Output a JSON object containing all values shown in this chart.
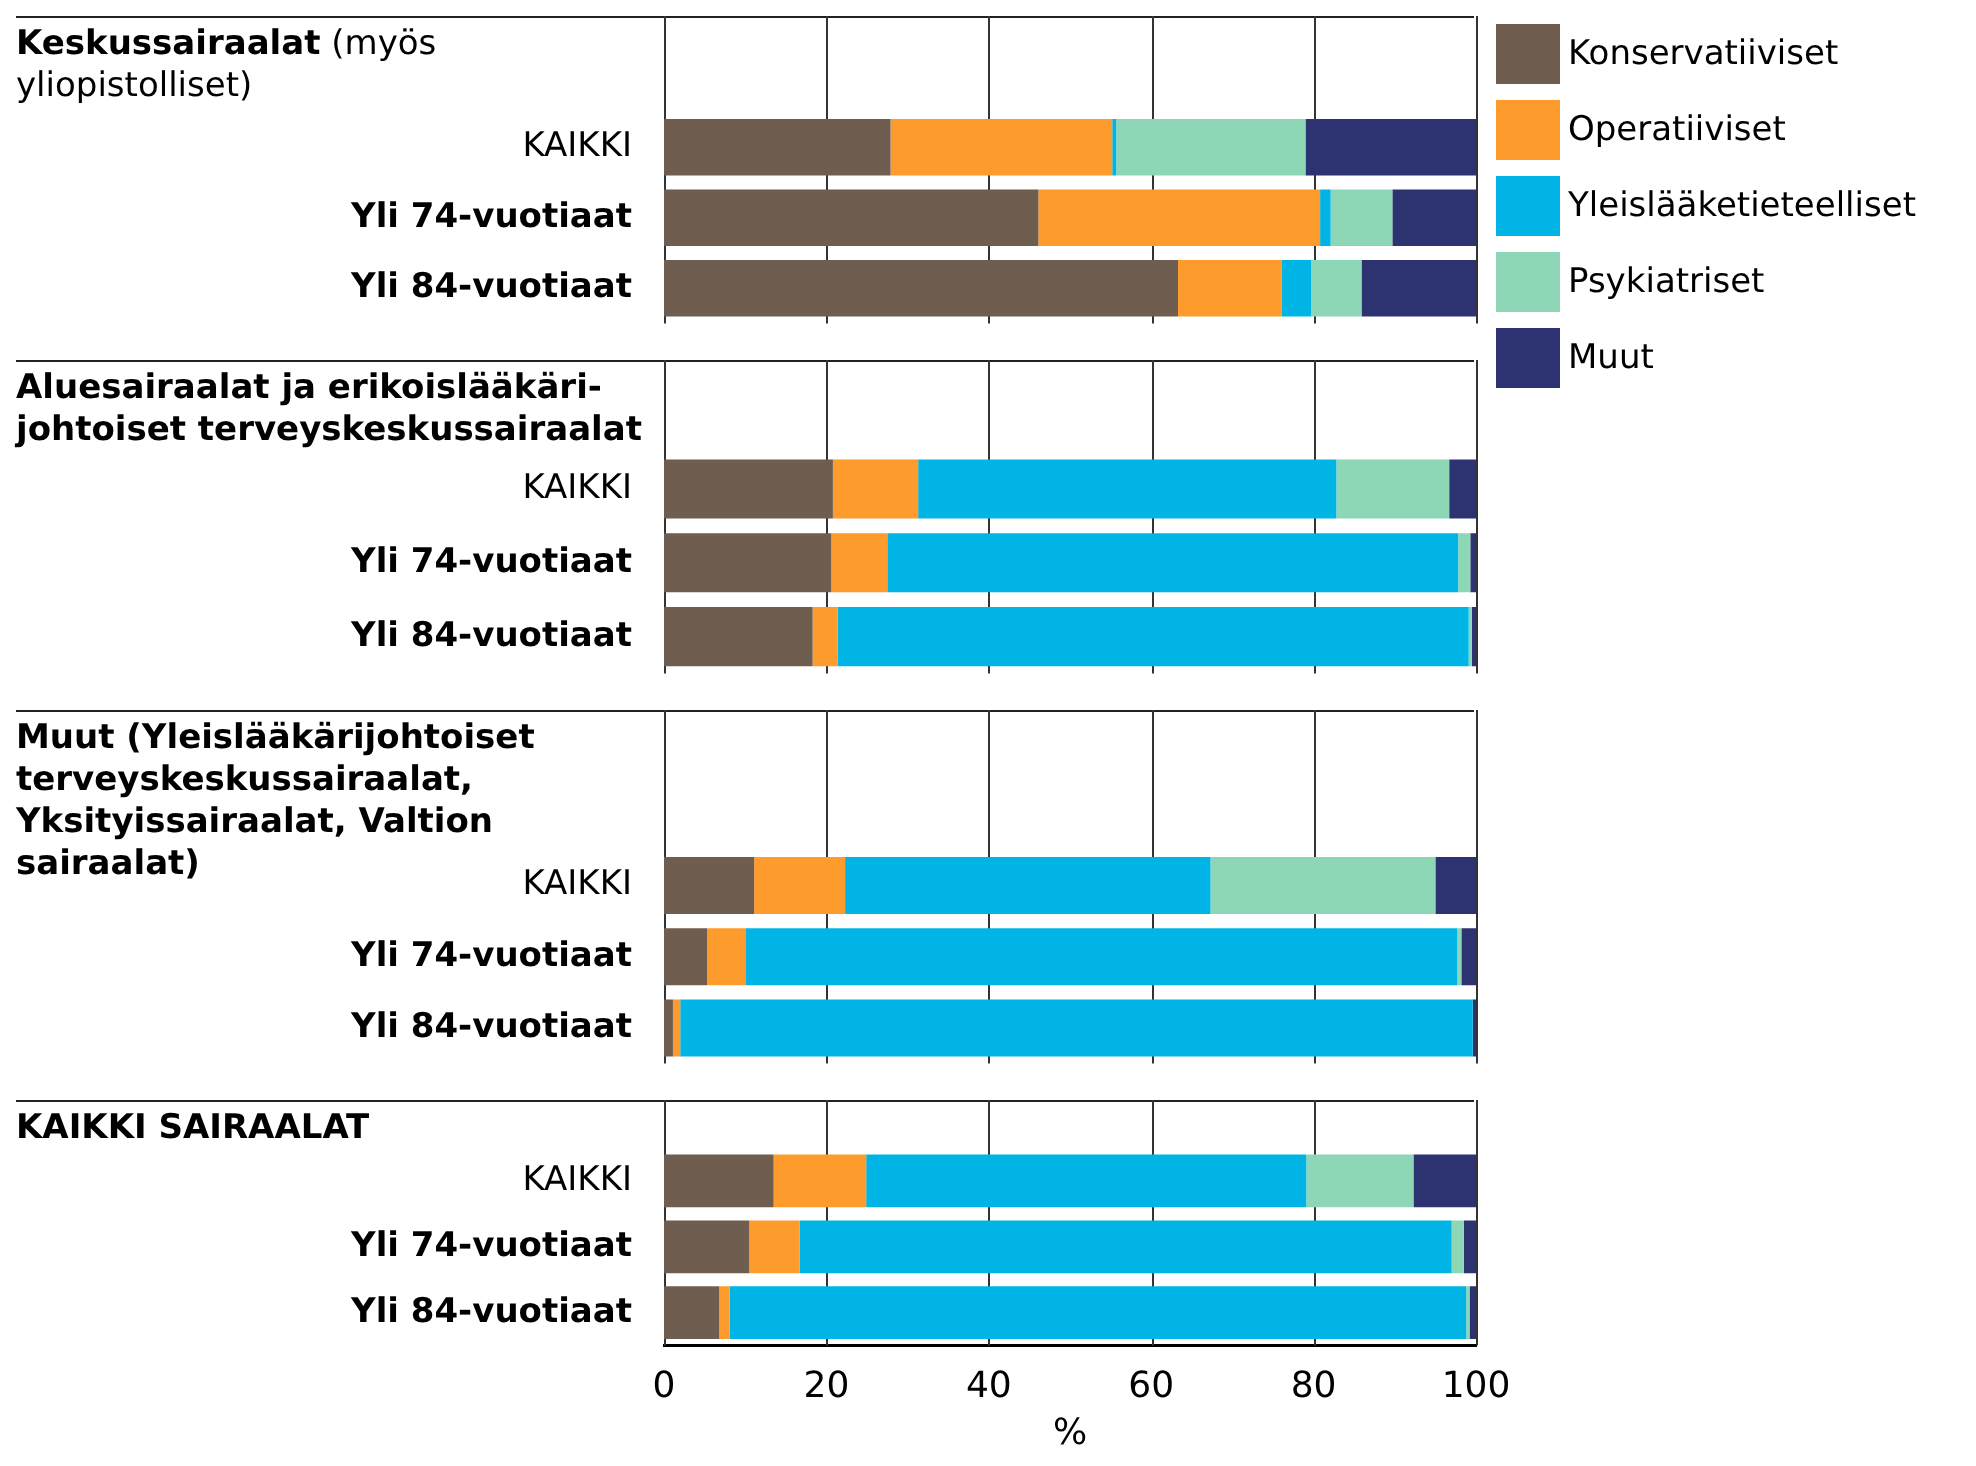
{
  "chart_data": [
    {
      "type": "bar",
      "orientation": "horizontal",
      "stacked": true,
      "title": "Keskussairaalat",
      "subtitle": "(myös yliopistolliset)",
      "categories": [
        "KAIKKI",
        "Yli 74-vuotiaat",
        "Yli 84-vuotiaat"
      ],
      "legend": "right",
      "grid": "x",
      "tick_labels": "y",
      "xlim": [
        0,
        100
      ],
      "xticks": [
        0,
        20,
        40,
        60,
        80,
        100
      ],
      "series": [
        {
          "name": "Konservatiiviset",
          "color": "#6f5d4f",
          "values": [
            27.9,
            46.1,
            63.3
          ]
        },
        {
          "name": "Operatiiviset",
          "color": "#fd9b2d",
          "values": [
            27.3,
            34.7,
            12.8
          ]
        },
        {
          "name": "Yleislääketieteelliset",
          "color": "#00b5e6",
          "values": [
            0.5,
            1.3,
            3.6
          ]
        },
        {
          "name": "Psykiatriset",
          "color": "#8dd7b7",
          "values": [
            23.3,
            7.6,
            6.2
          ]
        },
        {
          "name": "Muut",
          "color": "#2c3370",
          "values": [
            21.0,
            10.3,
            14.1
          ]
        }
      ]
    },
    {
      "type": "bar",
      "orientation": "horizontal",
      "stacked": true,
      "title": "Aluesairaalat ja erikoislääkäri-johtoiset terveyskeskussairaalat",
      "categories": [
        "KAIKKI",
        "Yli 74-vuotiaat",
        "Yli 84-vuotiaat"
      ],
      "grid": "x",
      "tick_labels": "y",
      "xlim": [
        0,
        100
      ],
      "xticks": [
        0,
        20,
        40,
        60,
        80,
        100
      ],
      "series": [
        {
          "color": "#6f5d4f",
          "values": [
            20.8,
            20.6,
            18.3
          ]
        },
        {
          "color": "#fd9b2d",
          "values": [
            10.5,
            6.9,
            3.1
          ]
        },
        {
          "color": "#00b5e6",
          "values": [
            51.5,
            70.3,
            77.7
          ]
        },
        {
          "color": "#8dd7b7",
          "values": [
            13.9,
            1.5,
            0.4
          ]
        },
        {
          "color": "#2c3370",
          "values": [
            3.3,
            0.7,
            0.5
          ]
        }
      ]
    },
    {
      "type": "bar",
      "orientation": "horizontal",
      "stacked": true,
      "title": "Muut (Yleislääkärijohtoiset terveyskeskussairaalat, Yksityissairaalat, Valtion sairaalat)",
      "categories": [
        "KAIKKI",
        "Yli 74-vuotiaat",
        "Yli 84-vuotiaat"
      ],
      "grid": "x",
      "tick_labels": "y",
      "xlim": [
        0,
        100
      ],
      "xticks": [
        0,
        20,
        40,
        60,
        80,
        100
      ],
      "series": [
        {
          "color": "#6f5d4f",
          "values": [
            11.1,
            5.3,
            1.1
          ]
        },
        {
          "color": "#fd9b2d",
          "values": [
            11.2,
            4.8,
            0.9
          ]
        },
        {
          "color": "#00b5e6",
          "values": [
            45.0,
            87.6,
            97.6
          ]
        },
        {
          "color": "#8dd7b7",
          "values": [
            27.7,
            0.5,
            0
          ]
        },
        {
          "color": "#2c3370",
          "values": [
            5.0,
            1.8,
            0.4
          ]
        }
      ]
    },
    {
      "type": "bar",
      "orientation": "horizontal",
      "stacked": true,
      "title": "KAIKKI SAIRAALAT",
      "categories": [
        "KAIKKI",
        "Yli 74-vuotiaat",
        "Yli 84-vuotiaat"
      ],
      "grid": "x",
      "xlabel": "%",
      "xlim": [
        0,
        100
      ],
      "xticks": [
        0,
        20,
        40,
        60,
        80,
        100
      ],
      "series": [
        {
          "color": "#6f5d4f",
          "values": [
            13.5,
            10.5,
            6.8
          ]
        },
        {
          "color": "#fd9b2d",
          "values": [
            11.4,
            6.2,
            1.3
          ]
        },
        {
          "color": "#00b5e6",
          "values": [
            54.2,
            80.3,
            90.7
          ]
        },
        {
          "color": "#8dd7b7",
          "values": [
            13.2,
            1.5,
            0.4
          ]
        },
        {
          "color": "#2c3370",
          "values": [
            7.7,
            1.5,
            0.8
          ]
        }
      ]
    }
  ]
}
